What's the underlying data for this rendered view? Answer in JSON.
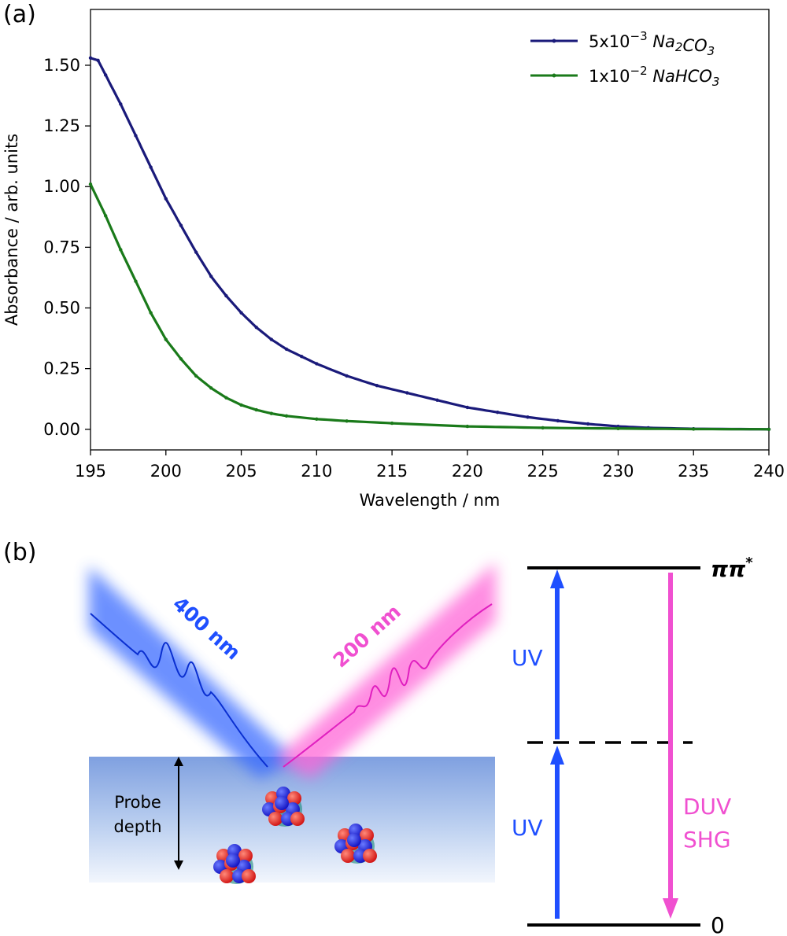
{
  "panel_a": {
    "label": "(a)",
    "legend": [
      {
        "prefix": "5x10",
        "exp": "−3",
        "species": [
          [
            "Na",
            ""
          ],
          [
            "2",
            "sub"
          ],
          [
            "CO",
            ""
          ],
          [
            "3",
            "sub"
          ]
        ]
      },
      {
        "prefix": "1x10",
        "exp": "−2",
        "species": [
          [
            "NaHCO",
            ""
          ],
          [
            "3",
            "sub"
          ]
        ]
      }
    ]
  },
  "chart_data": {
    "type": "line",
    "xlabel": "Wavelength / nm",
    "ylabel": "Absorbance / arb. units",
    "xlim": [
      195,
      240
    ],
    "ylim": [
      -0.085,
      1.73
    ],
    "xticks": [
      195,
      200,
      205,
      210,
      215,
      220,
      225,
      230,
      235,
      240
    ],
    "yticks": [
      "0.00",
      "0.25",
      "0.50",
      "0.75",
      "1.00",
      "1.25",
      "1.50"
    ],
    "grid": false,
    "legend_position": "top-right",
    "series": [
      {
        "color": "#1a1a7a",
        "x": [
          195,
          195.5,
          196,
          197,
          198,
          199,
          200,
          201,
          202,
          203,
          204,
          205,
          206,
          207,
          208,
          209,
          210,
          212,
          214,
          216,
          218,
          220,
          222,
          224,
          226,
          228,
          230,
          232,
          235,
          240
        ],
        "y": [
          1.53,
          1.52,
          1.46,
          1.34,
          1.21,
          1.08,
          0.95,
          0.84,
          0.73,
          0.63,
          0.55,
          0.48,
          0.42,
          0.37,
          0.33,
          0.3,
          0.27,
          0.22,
          0.18,
          0.15,
          0.12,
          0.09,
          0.07,
          0.05,
          0.035,
          0.022,
          0.012,
          0.006,
          0.002,
          0.0
        ]
      },
      {
        "color": "#1a7a1a",
        "x": [
          195,
          196,
          197,
          198,
          199,
          200,
          201,
          202,
          203,
          204,
          205,
          206,
          207,
          208,
          210,
          212,
          215,
          220,
          225,
          230,
          235,
          240
        ],
        "y": [
          1.01,
          0.88,
          0.74,
          0.61,
          0.48,
          0.37,
          0.29,
          0.22,
          0.17,
          0.13,
          0.1,
          0.08,
          0.065,
          0.055,
          0.042,
          0.034,
          0.025,
          0.012,
          0.006,
          0.003,
          0.001,
          0.0
        ]
      }
    ]
  },
  "panel_b": {
    "label": "(b)",
    "beam_in": "400 nm",
    "beam_out": "200 nm",
    "probe_depth": [
      "Probe",
      "depth"
    ],
    "level_top": "ππ",
    "level_top_sup": "*",
    "level_bottom": "0",
    "uv_upper": "UV",
    "uv_lower": "UV",
    "duv": [
      "DUV",
      "SHG"
    ],
    "colors": {
      "uv": "#1f4fff",
      "duv": "#f050d0",
      "black": "#000000"
    }
  }
}
